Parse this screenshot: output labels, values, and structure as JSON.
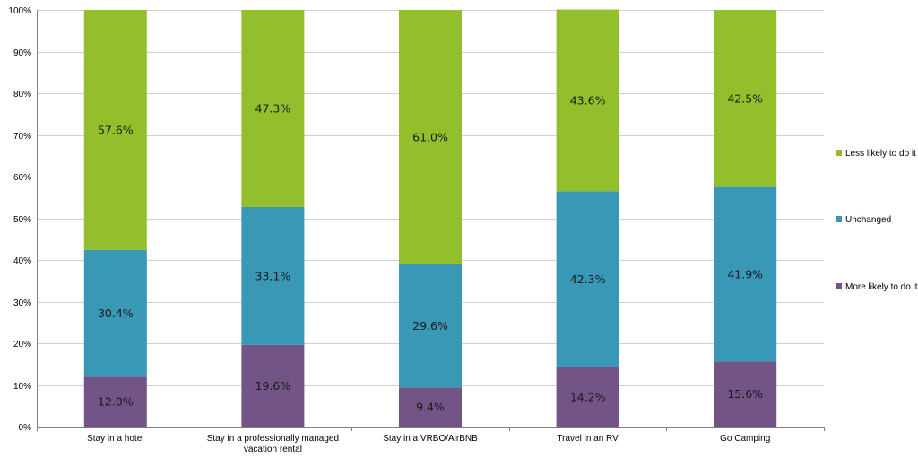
{
  "chart_data": {
    "type": "bar",
    "stacked": true,
    "title": "",
    "xlabel": "",
    "ylabel": "",
    "ylim": [
      0,
      100
    ],
    "y_ticks": [
      "0%",
      "10%",
      "20%",
      "30%",
      "40%",
      "50%",
      "60%",
      "70%",
      "80%",
      "90%",
      "100%"
    ],
    "categories": [
      [
        "Stay in a hotel"
      ],
      [
        "Stay in a professionally managed",
        "vacation rental"
      ],
      [
        "Stay in a VRBO/AirBNB"
      ],
      [
        "Travel in an RV"
      ],
      [
        "Go Camping"
      ]
    ],
    "series": [
      {
        "name": "More likely to do it",
        "color": "#725586",
        "values": [
          12.0,
          19.6,
          9.4,
          14.2,
          15.6
        ],
        "labels": [
          "12.0%",
          "19.6%",
          "9.4%",
          "14.2%",
          "15.6%"
        ]
      },
      {
        "name": "Unchanged",
        "color": "#3a98b7",
        "values": [
          30.4,
          33.1,
          29.6,
          42.3,
          41.9
        ],
        "labels": [
          "30.4%",
          "33.1%",
          "29.6%",
          "42.3%",
          "41.9%"
        ]
      },
      {
        "name": "Less likely to do it",
        "color": "#93bf2d",
        "values": [
          57.6,
          47.3,
          61.0,
          43.6,
          42.5
        ],
        "labels": [
          "57.6%",
          "47.3%",
          "61.0%",
          "43.6%",
          "42.5%"
        ]
      }
    ],
    "legend_position": "right",
    "legend_order": [
      "Less likely to do it",
      "Unchanged",
      "More likely to do it"
    ],
    "grid": true
  }
}
